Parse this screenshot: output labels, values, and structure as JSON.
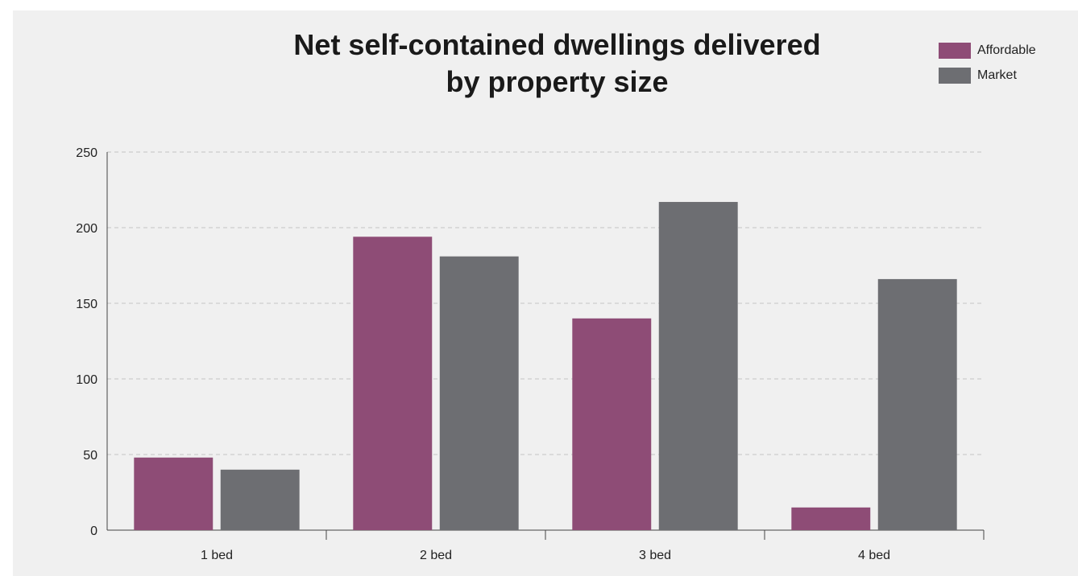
{
  "chart_data": {
    "type": "bar",
    "title_lines": [
      "Net self-contained dwellings delivered",
      "by property size"
    ],
    "categories": [
      "1 bed",
      "2 bed",
      "3 bed",
      "4 bed"
    ],
    "series": [
      {
        "name": "Affordable",
        "color": "#8e4c76",
        "values": [
          48,
          194,
          140,
          15
        ]
      },
      {
        "name": "Market",
        "color": "#6d6e72",
        "values": [
          40,
          181,
          217,
          166
        ]
      }
    ],
    "xlabel": "",
    "ylabel": "",
    "ylim": [
      0,
      250
    ],
    "yticks": [
      0,
      50,
      100,
      150,
      200,
      250
    ],
    "grid": true,
    "legend_position": "top-right"
  }
}
